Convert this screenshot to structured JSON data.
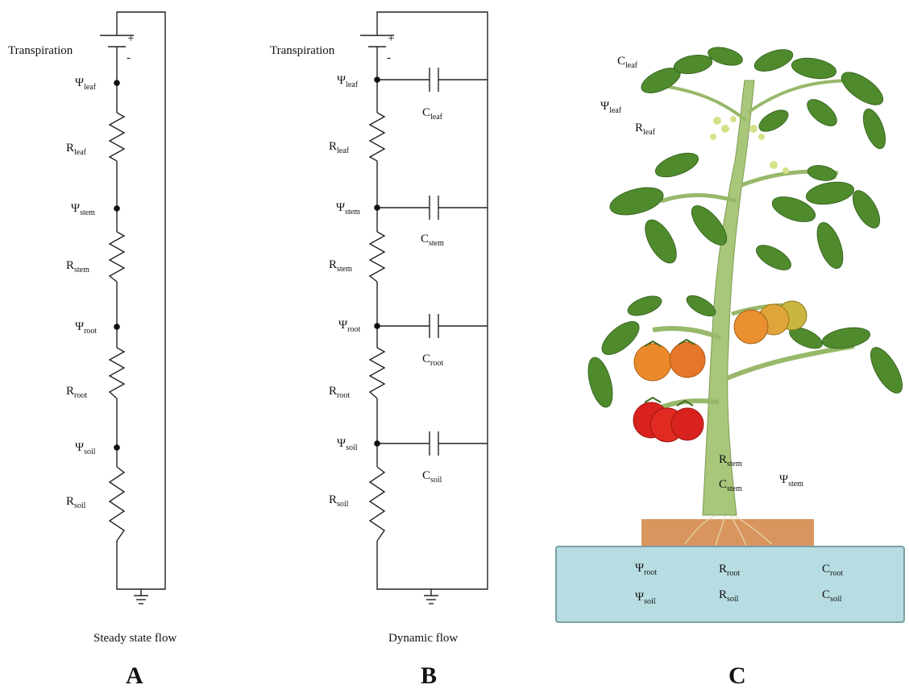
{
  "panelA": {
    "source": {
      "label": "Transpiration",
      "plus": "+",
      "minus": "-"
    },
    "labels": [
      {
        "id": "psi-leaf",
        "sym": "Ψ",
        "sub": "leaf"
      },
      {
        "id": "r-leaf",
        "sym": "R",
        "sub": "leaf"
      },
      {
        "id": "psi-stem",
        "sym": "Ψ",
        "sub": "stem"
      },
      {
        "id": "r-stem",
        "sym": "R",
        "sub": "stem"
      },
      {
        "id": "psi-root",
        "sym": "Ψ",
        "sub": "root"
      },
      {
        "id": "r-root",
        "sym": "R",
        "sub": "root"
      },
      {
        "id": "psi-soil",
        "sym": "Ψ",
        "sub": "soil"
      },
      {
        "id": "r-soil",
        "sym": "R",
        "sub": "soil"
      }
    ],
    "caption": "Steady state flow",
    "letter": "A"
  },
  "panelB": {
    "source": {
      "label": "Transpiration",
      "plus": "+",
      "minus": "-"
    },
    "labels": [
      {
        "id": "psi-leaf",
        "sym": "Ψ",
        "sub": "leaf"
      },
      {
        "id": "c-leaf",
        "sym": "C",
        "sub": "leaf"
      },
      {
        "id": "r-leaf",
        "sym": "R",
        "sub": "leaf"
      },
      {
        "id": "psi-stem",
        "sym": "Ψ",
        "sub": "stem"
      },
      {
        "id": "c-stem",
        "sym": "C",
        "sub": "stem"
      },
      {
        "id": "r-stem",
        "sym": "R",
        "sub": "stem"
      },
      {
        "id": "psi-root",
        "sym": "Ψ",
        "sub": "root"
      },
      {
        "id": "c-root",
        "sym": "C",
        "sub": "root"
      },
      {
        "id": "r-root",
        "sym": "R",
        "sub": "root"
      },
      {
        "id": "psi-soil",
        "sym": "Ψ",
        "sub": "soil"
      },
      {
        "id": "c-soil",
        "sym": "C",
        "sub": "soil"
      },
      {
        "id": "r-soil",
        "sym": "R",
        "sub": "soil"
      }
    ],
    "caption": "Dynamic flow",
    "letter": "B"
  },
  "panelC": {
    "labels": [
      {
        "id": "c-leaf",
        "sym": "C",
        "sub": "leaf"
      },
      {
        "id": "psi-leaf",
        "sym": "Ψ",
        "sub": "leaf"
      },
      {
        "id": "r-leaf",
        "sym": "R",
        "sub": "leaf"
      },
      {
        "id": "r-stem",
        "sym": "R",
        "sub": "stem"
      },
      {
        "id": "c-stem",
        "sym": "C",
        "sub": "stem"
      },
      {
        "id": "psi-stem",
        "sym": "Ψ",
        "sub": "stem"
      },
      {
        "id": "psi-root",
        "sym": "Ψ",
        "sub": "root"
      },
      {
        "id": "r-root",
        "sym": "R",
        "sub": "root"
      },
      {
        "id": "c-root",
        "sym": "C",
        "sub": "root"
      },
      {
        "id": "psi-soil",
        "sym": "Ψ",
        "sub": "soil"
      },
      {
        "id": "r-soil",
        "sym": "R",
        "sub": "soil"
      },
      {
        "id": "c-soil",
        "sym": "C",
        "sub": "soil"
      }
    ],
    "letter": "C",
    "colors": {
      "soil_box": "#b7dde2",
      "pot": "#d9955e",
      "leaf": "#4f8a2c",
      "stem": "#a9c77a",
      "tomato_red": "#d9221d",
      "tomato_orange": "#ea8a2a"
    }
  }
}
